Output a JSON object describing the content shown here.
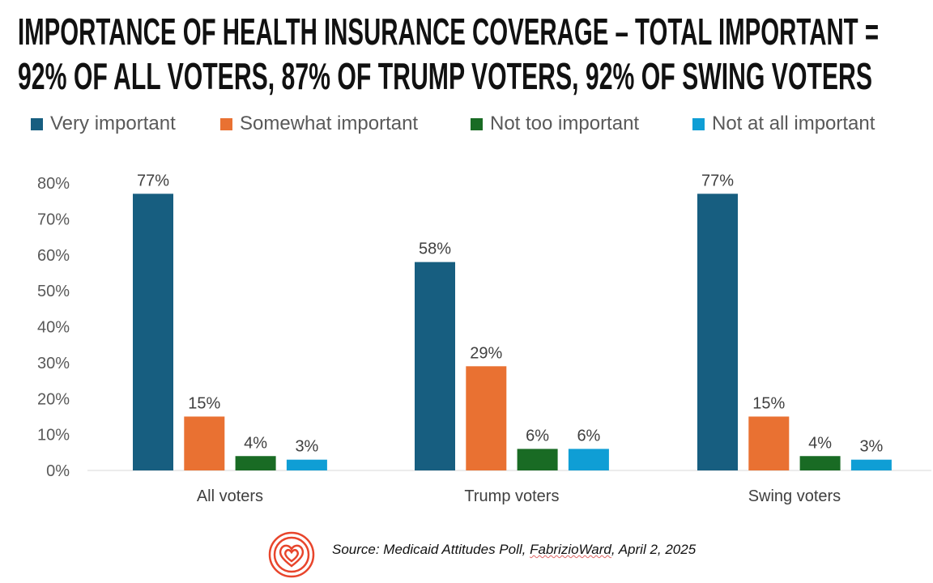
{
  "title_lines": [
    "IMPORTANCE OF HEALTH INSURANCE COVERAGE – TOTAL IMPORTANT =",
    "92% OF ALL VOTERS, 87% OF TRUMP VOTERS, 92% OF SWING VOTERS"
  ],
  "colors": {
    "Very important": "#175e80",
    "Somewhat important": "#e97132",
    "Not too important": "#196b24",
    "Not at all important": "#0f9ed5",
    "logo": "#e8452c"
  },
  "chart_data": {
    "type": "bar",
    "title": "IMPORTANCE OF HEALTH INSURANCE COVERAGE – TOTAL IMPORTANT = 92% OF ALL VOTERS, 87% OF TRUMP VOTERS, 92% OF SWING VOTERS",
    "categories": [
      "All voters",
      "Trump voters",
      "Swing voters"
    ],
    "series": [
      {
        "name": "Very important",
        "values": [
          77,
          58,
          77
        ]
      },
      {
        "name": "Somewhat important",
        "values": [
          15,
          29,
          15
        ]
      },
      {
        "name": "Not too important",
        "values": [
          4,
          6,
          4
        ]
      },
      {
        "name": "Not at all important",
        "values": [
          3,
          6,
          3
        ]
      }
    ],
    "ylim": [
      0,
      80
    ],
    "yticks": [
      "0%",
      "10%",
      "20%",
      "30%",
      "40%",
      "50%",
      "60%",
      "70%",
      "80%"
    ],
    "value_format": "percent",
    "grid": false,
    "legend": "top",
    "xlabel": "",
    "ylabel": ""
  },
  "source": {
    "prefix": "Source: Medicaid Attitudes Poll, ",
    "org": "FabrizioWard",
    "suffix": ", April 2, 2025"
  }
}
